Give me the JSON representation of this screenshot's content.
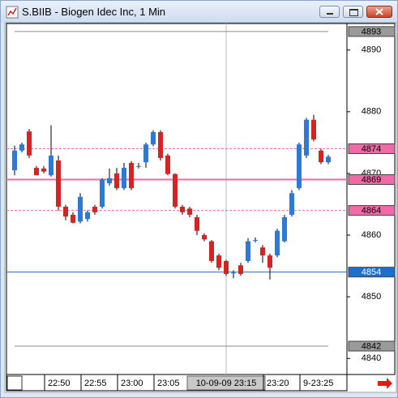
{
  "window": {
    "title": "S.BIIB - Biogen Idec Inc, 1 Min"
  },
  "chart_data": {
    "type": "candlestick",
    "categories": [
      null,
      null,
      null,
      null,
      "22:50",
      null,
      null,
      null,
      null,
      "22:55",
      null,
      null,
      null,
      null,
      "23:00",
      null,
      null,
      null,
      null,
      "23:05",
      null,
      null,
      null,
      null,
      null,
      null,
      null,
      null,
      null,
      "10-09-09 23:15",
      null,
      null,
      null,
      null,
      "23:20",
      null,
      null,
      null,
      null,
      "9-23:25",
      null,
      null,
      null,
      null
    ],
    "open": [
      4870.5,
      4873.7,
      4876.8,
      4870.9,
      4870.8,
      4869.7,
      4872.1,
      4864.6,
      4863.3,
      4862.2,
      4862.6,
      4864.6,
      4864.6,
      4868.4,
      4870.0,
      4867.6,
      4871.7,
      4871.2,
      4871.8,
      4874.7,
      4876.7,
      4872.9,
      4869.9,
      4864.6,
      4864.3,
      4862.9,
      4860.0,
      4859.0,
      4856.7,
      4855.8,
      4853.9,
      4855.1,
      4855.8,
      4859.2,
      4858.0,
      4856.7,
      4856.7,
      4859.0,
      4863.3,
      4867.6,
      4872.9,
      4878.7,
      4873.7,
      4871.8
    ],
    "high": [
      4874.5,
      4875.0,
      4877.2,
      4871.2,
      4871.2,
      4877.8,
      4872.9,
      4864.9,
      4863.7,
      4866.8,
      4864.0,
      4864.9,
      4869.2,
      4870.8,
      4870.9,
      4871.7,
      4872.0,
      4871.7,
      4875.0,
      4877.0,
      4877.0,
      4873.2,
      4870.0,
      4864.9,
      4864.6,
      4863.3,
      4860.3,
      4859.2,
      4857.0,
      4856.0,
      4854.3,
      4855.5,
      4859.5,
      4859.6,
      4858.4,
      4857.0,
      4861.0,
      4863.3,
      4867.3,
      4875.0,
      4879.0,
      4879.5,
      4874.0,
      4873.0
    ],
    "low": [
      4869.7,
      4873.4,
      4872.5,
      4869.7,
      4870.0,
      4869.5,
      4864.0,
      4862.4,
      4861.9,
      4861.9,
      4862.2,
      4863.3,
      4864.3,
      4868.0,
      4867.3,
      4867.3,
      4867.3,
      4870.8,
      4870.9,
      4874.4,
      4872.1,
      4869.7,
      4864.3,
      4863.3,
      4862.9,
      4860.0,
      4859.0,
      4855.5,
      4854.3,
      4853.4,
      4853.0,
      4853.4,
      4855.5,
      4858.8,
      4855.5,
      4852.8,
      4856.4,
      4858.8,
      4863.0,
      4867.3,
      4872.5,
      4875.2,
      4871.5,
      4871.5
    ],
    "close": [
      4873.7,
      4874.7,
      4872.9,
      4869.7,
      4870.3,
      4872.9,
      4864.6,
      4863.0,
      4862.0,
      4866.2,
      4863.7,
      4863.7,
      4869.0,
      4869.2,
      4867.6,
      4870.9,
      4867.6,
      4871.2,
      4874.7,
      4876.7,
      4872.5,
      4869.9,
      4864.6,
      4863.7,
      4863.3,
      4860.7,
      4859.3,
      4855.8,
      4854.7,
      4853.7,
      4853.9,
      4853.7,
      4859.0,
      4859.2,
      4856.7,
      4854.7,
      4860.7,
      4862.9,
      4866.8,
      4874.7,
      4878.7,
      4875.5,
      4871.8,
      4872.7
    ],
    "up_color": "#2c7ad6",
    "down_color": "#d42424",
    "ylim": [
      4837.4,
      4894.3
    ],
    "yticks": [
      4840,
      4850,
      4860,
      4870,
      4880,
      4890
    ],
    "levels": [
      {
        "value": 4893,
        "color": "#8c8c8c",
        "style": "solid"
      },
      {
        "value": 4874,
        "color": "#f06aa8",
        "style": "dashed"
      },
      {
        "value": 4869,
        "color": "#f06aa8",
        "style": "thick"
      },
      {
        "value": 4864,
        "color": "#f06aa8",
        "style": "dashed"
      },
      {
        "value": 4854,
        "color": "#1c6fd0",
        "style": "solid"
      },
      {
        "value": 4842,
        "color": "#8c8c8c",
        "style": "solid"
      }
    ]
  }
}
